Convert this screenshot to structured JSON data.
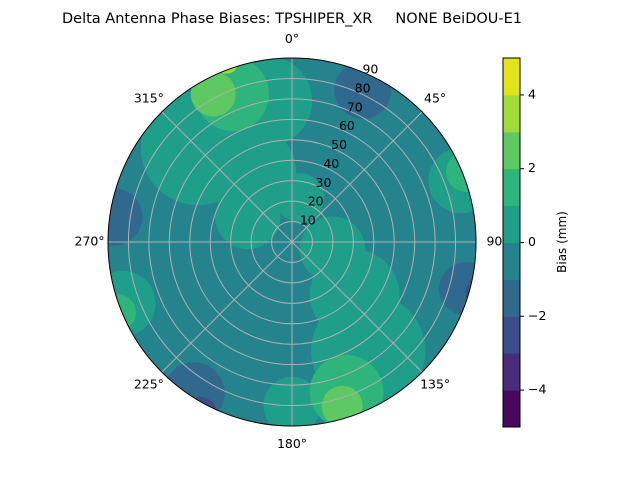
{
  "chart_data": {
    "type": "polar-contour",
    "title": "Delta Antenna Phase Biases: TPSHIPER_XR     NONE BeiDOU-E1",
    "theta_direction": "clockwise",
    "theta_zero": "top",
    "angle_ticks": [
      {
        "deg": 0,
        "label": "0°"
      },
      {
        "deg": 45,
        "label": "45°"
      },
      {
        "deg": 90,
        "label": "90"
      },
      {
        "deg": 135,
        "label": "135°"
      },
      {
        "deg": 180,
        "label": "180°"
      },
      {
        "deg": 225,
        "label": "225°"
      },
      {
        "deg": 270,
        "label": "270°"
      },
      {
        "deg": 315,
        "label": "315°"
      }
    ],
    "radial_ticks": [
      10,
      20,
      30,
      40,
      50,
      60,
      70,
      80,
      90
    ],
    "rlim": [
      0,
      90
    ],
    "grid": true,
    "levels": [
      -5,
      -4,
      -3,
      -2,
      -1,
      0,
      1,
      2,
      3,
      4,
      5
    ],
    "level_colors": [
      "#46085c",
      "#472d7b",
      "#3c4d8a",
      "#30688e",
      "#25838e",
      "#1f9e89",
      "#2fb57b",
      "#5ec962",
      "#a1db39",
      "#e1e41d"
    ],
    "background_level": -0.5,
    "regions": [
      {
        "value": 0.5,
        "az": 315,
        "r": 65,
        "size": 28
      },
      {
        "value": 0.5,
        "az": 330,
        "r": 40,
        "size": 22
      },
      {
        "value": 0.5,
        "az": 300,
        "r": 25,
        "size": 16
      },
      {
        "value": 0.5,
        "az": 10,
        "r": 22,
        "size": 12
      },
      {
        "value": 0.5,
        "az": 100,
        "r": 20,
        "size": 16
      },
      {
        "value": 0.5,
        "az": 130,
        "r": 40,
        "size": 22
      },
      {
        "value": 0.5,
        "az": 145,
        "r": 65,
        "size": 28
      },
      {
        "value": 0.5,
        "az": 180,
        "r": 80,
        "size": 14
      },
      {
        "value": 0.5,
        "az": 70,
        "r": 88,
        "size": 16
      },
      {
        "value": 0.5,
        "az": 250,
        "r": 88,
        "size": 16
      },
      {
        "value": 0.5,
        "az": 350,
        "r": 70,
        "size": 22
      },
      {
        "value": 1.5,
        "az": 338,
        "r": 78,
        "size": 18
      },
      {
        "value": 1.5,
        "az": 160,
        "r": 78,
        "size": 18
      },
      {
        "value": 1.5,
        "az": 68,
        "r": 92,
        "size": 10
      },
      {
        "value": 1.5,
        "az": 248,
        "r": 92,
        "size": 9
      },
      {
        "value": 2.5,
        "az": 332,
        "r": 82,
        "size": 11
      },
      {
        "value": 2.5,
        "az": 163,
        "r": 84,
        "size": 10
      },
      {
        "value": 3.5,
        "az": 340,
        "r": 94,
        "size": 6
      },
      {
        "value": -1.5,
        "az": 25,
        "r": 82,
        "size": 14
      },
      {
        "value": -1.5,
        "az": 278,
        "r": 88,
        "size": 14
      },
      {
        "value": -1.5,
        "az": 105,
        "r": 88,
        "size": 13
      },
      {
        "value": -1.5,
        "az": 213,
        "r": 88,
        "size": 15
      },
      {
        "value": -2.5,
        "az": 105,
        "r": 95,
        "size": 7
      },
      {
        "value": -2.5,
        "az": 285,
        "r": 96,
        "size": 6
      },
      {
        "value": -2.5,
        "az": 208,
        "r": 95,
        "size": 8
      }
    ],
    "colorbar": {
      "label": "Bias (mm)",
      "range": [
        -5,
        5
      ],
      "ticks": [
        {
          "value": 4,
          "label": "4"
        },
        {
          "value": 2,
          "label": "2"
        },
        {
          "value": 0,
          "label": "0"
        },
        {
          "value": -2,
          "label": "−2"
        },
        {
          "value": -4,
          "label": "−4"
        }
      ]
    }
  }
}
